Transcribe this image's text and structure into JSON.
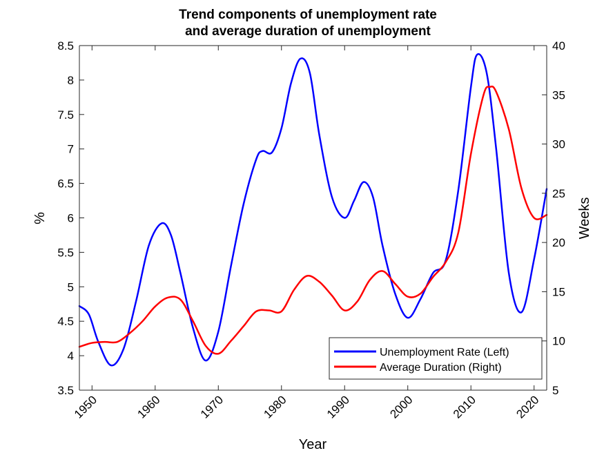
{
  "chart_data": {
    "type": "line",
    "title": [
      "Trend components of unemployment rate",
      "and average duration of unemployment"
    ],
    "xlabel": "Year",
    "ylabel_left": "%",
    "ylabel_right": "Weeks",
    "xlim": [
      1948,
      2022
    ],
    "ylim_left": [
      3.5,
      8.5
    ],
    "ylim_right": [
      5,
      40
    ],
    "x_ticks": [
      "1950",
      "1960",
      "1970",
      "1980",
      "1990",
      "2000",
      "2010",
      "2020"
    ],
    "y_ticks_left": [
      "3.5",
      "4",
      "4.5",
      "5",
      "5.5",
      "6",
      "6.5",
      "7",
      "7.5",
      "8",
      "8.5"
    ],
    "y_ticks_right": [
      "5",
      "10",
      "15",
      "20",
      "25",
      "30",
      "35",
      "40"
    ],
    "grid": false,
    "legend_position": "bottom-right",
    "series": [
      {
        "name": "Unemployment Rate (Left)",
        "axis": "left",
        "color": "#0000ff",
        "x": [
          1948,
          1949.5,
          1951,
          1953,
          1955,
          1957,
          1959,
          1961,
          1962.5,
          1964,
          1966,
          1968,
          1970,
          1972,
          1974,
          1976,
          1977,
          1978.5,
          1980,
          1981.5,
          1983,
          1984.5,
          1986,
          1988,
          1990,
          1991.5,
          1993,
          1994.5,
          1996,
          1998,
          2000,
          2002,
          2004,
          2006,
          2008,
          2010,
          2011,
          2012.5,
          2014,
          2016,
          2018,
          2020,
          2022
        ],
        "values": [
          4.72,
          4.6,
          4.2,
          3.86,
          4.1,
          4.8,
          5.6,
          5.92,
          5.75,
          5.2,
          4.4,
          3.93,
          4.35,
          5.3,
          6.2,
          6.85,
          6.97,
          6.95,
          7.3,
          7.95,
          8.31,
          8.1,
          7.2,
          6.3,
          6.0,
          6.25,
          6.52,
          6.3,
          5.6,
          4.9,
          4.55,
          4.82,
          5.2,
          5.38,
          6.4,
          7.9,
          8.37,
          8.1,
          7.0,
          5.2,
          4.63,
          5.4,
          6.42
        ]
      },
      {
        "name": "Average Duration (Right)",
        "axis": "right",
        "color": "#ff0000",
        "x": [
          1948,
          1950,
          1952,
          1954,
          1956,
          1958,
          1960,
          1962,
          1964,
          1966,
          1968,
          1970,
          1972,
          1974,
          1976,
          1978,
          1980,
          1982,
          1984,
          1986,
          1988,
          1990,
          1992,
          1994,
          1996,
          1998,
          2000,
          2002,
          2004,
          2006,
          2008,
          2010,
          2012,
          2013,
          2014,
          2016,
          2018,
          2020,
          2022
        ],
        "values": [
          9.4,
          9.8,
          9.9,
          9.9,
          10.8,
          12.0,
          13.5,
          14.4,
          14.2,
          12.0,
          9.5,
          8.7,
          10.0,
          11.5,
          13.0,
          13.1,
          13.0,
          15.2,
          16.6,
          16.0,
          14.6,
          13.1,
          14.0,
          16.2,
          17.1,
          15.8,
          14.5,
          14.8,
          16.5,
          18.0,
          21.0,
          29.0,
          35.0,
          35.8,
          35.3,
          31.5,
          25.5,
          22.5,
          22.8
        ]
      }
    ]
  }
}
